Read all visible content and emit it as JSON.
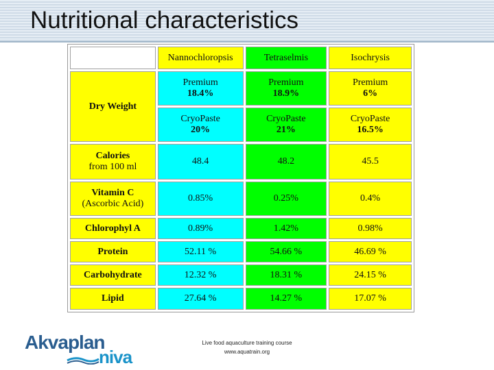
{
  "slide": {
    "title": "Nutritional characteristics",
    "footer": {
      "line1": "Live food aquaculture training course",
      "line2": "www.aquatrain.org"
    },
    "logo": {
      "word1": "Akvaplan",
      "word2": "niva"
    }
  },
  "colors": {
    "yellow": "#ffff00",
    "cyan": "#00ffff",
    "green": "#00ff00",
    "header_band": "#cfdbe7",
    "logo_blue_dark": "#2a5d8f",
    "logo_blue_light": "#1a93c9"
  },
  "table": {
    "headers": [
      "Nannochloropsis",
      "Tetraselmis",
      "Isochrysis"
    ],
    "dry_weight": {
      "label": "Dry Weight",
      "premium": [
        {
          "name": "Premium",
          "value": "18.4%"
        },
        {
          "name": "Premium",
          "value": "18.9%"
        },
        {
          "name": "Premium",
          "value": "6%"
        }
      ],
      "cryopaste": [
        {
          "name": "CryoPaste",
          "value": "20%"
        },
        {
          "name": "CryoPaste",
          "value": "21%"
        },
        {
          "name": "CryoPaste",
          "value": "16.5%"
        }
      ]
    },
    "calories": {
      "label_line1": "Calories",
      "label_line2": "from 100 ml",
      "values": [
        "48.4",
        "48.2",
        "45.5"
      ]
    },
    "vitamin_c": {
      "label_line1": "Vitamin C",
      "label_line2": "(Ascorbic Acid)",
      "values": [
        "0.85%",
        "0.25%",
        "0.4%"
      ]
    },
    "rows": [
      {
        "label": "Chlorophyl A",
        "values": [
          "0.89%",
          "1.42%",
          "0.98%"
        ]
      },
      {
        "label": "Protein",
        "values": [
          "52.11 %",
          "54.66 %",
          "46.69 %"
        ]
      },
      {
        "label": "Carbohydrate",
        "values": [
          "12.32 %",
          "18.31 %",
          "24.15 %"
        ]
      },
      {
        "label": "Lipid",
        "values": [
          "27.64 %",
          "14.27 %",
          "17.07 %"
        ]
      }
    ]
  }
}
